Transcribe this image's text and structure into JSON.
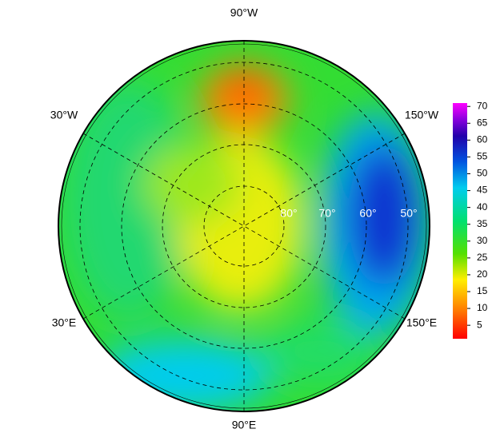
{
  "map": {
    "longitude_labels": [
      "90°W",
      "30°W",
      "150°W",
      "30°E",
      "150°E",
      "90°E"
    ],
    "latitude_labels": [
      "80°",
      "70°",
      "60°",
      "50°"
    ],
    "colorbar": {
      "range": [
        1,
        71
      ],
      "ticks": [
        5,
        10,
        15,
        20,
        25,
        30,
        35,
        40,
        45,
        50,
        55,
        60,
        65,
        70
      ]
    }
  }
}
